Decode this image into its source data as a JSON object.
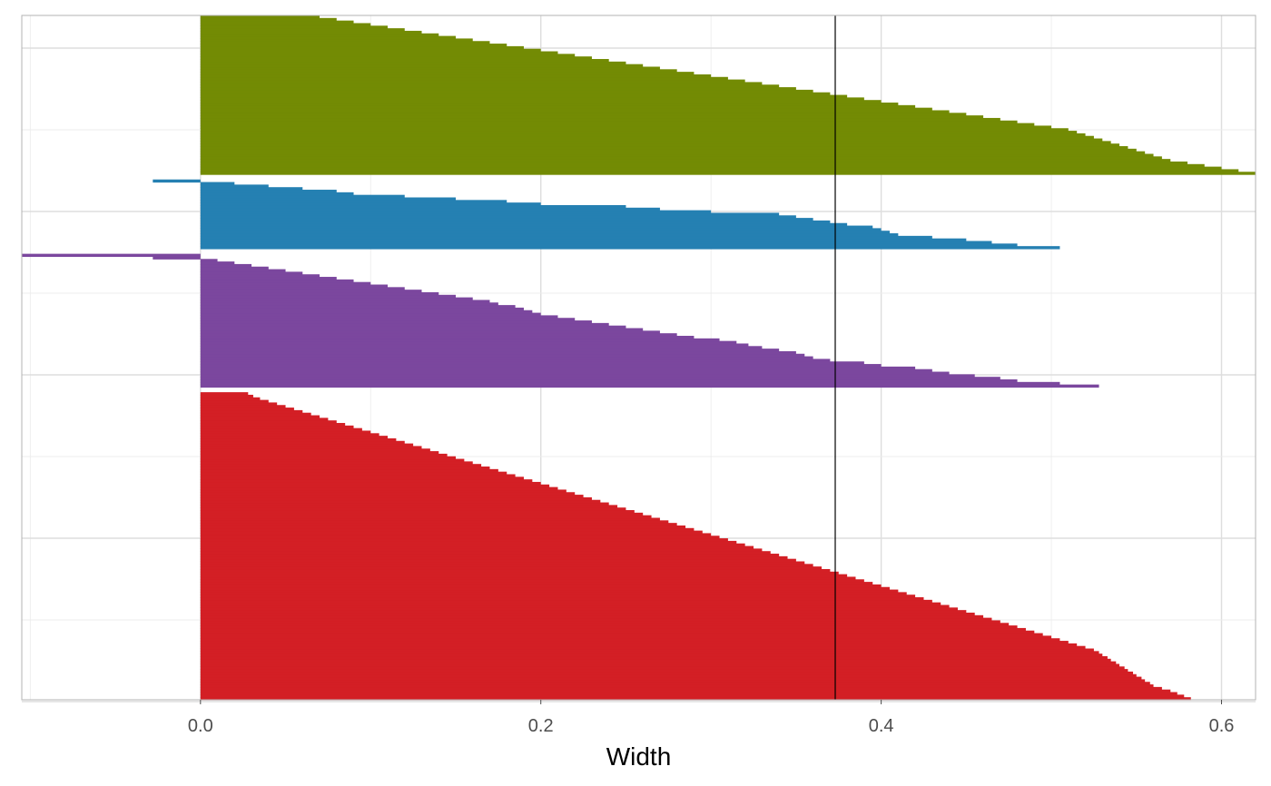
{
  "chart_data": {
    "type": "silhouette",
    "title": "",
    "xlabel": "Width",
    "ylabel": "",
    "xlim": [
      -0.105,
      0.62
    ],
    "x_ticks": [
      0.0,
      0.2,
      0.4,
      0.6
    ],
    "x_tick_labels": [
      "0.0",
      "0.2",
      "0.4",
      "0.6"
    ],
    "grid": true,
    "legend": "none",
    "reference_line": {
      "x": 0.373,
      "label": ""
    },
    "clusters": [
      {
        "color": "#d31f25",
        "values": [
          0.582,
          0.578,
          0.574,
          0.57,
          0.565,
          0.56,
          0.558,
          0.555,
          0.553,
          0.55,
          0.548,
          0.545,
          0.543,
          0.54,
          0.538,
          0.535,
          0.533,
          0.53,
          0.528,
          0.525,
          0.52,
          0.515,
          0.51,
          0.505,
          0.5,
          0.495,
          0.49,
          0.485,
          0.48,
          0.475,
          0.47,
          0.465,
          0.46,
          0.455,
          0.45,
          0.445,
          0.44,
          0.435,
          0.43,
          0.425,
          0.42,
          0.415,
          0.41,
          0.405,
          0.4,
          0.395,
          0.39,
          0.385,
          0.38,
          0.375,
          0.37,
          0.365,
          0.36,
          0.355,
          0.35,
          0.345,
          0.34,
          0.335,
          0.33,
          0.325,
          0.32,
          0.315,
          0.31,
          0.305,
          0.3,
          0.295,
          0.29,
          0.285,
          0.28,
          0.275,
          0.27,
          0.265,
          0.26,
          0.255,
          0.25,
          0.245,
          0.24,
          0.235,
          0.23,
          0.225,
          0.22,
          0.215,
          0.21,
          0.205,
          0.2,
          0.195,
          0.19,
          0.185,
          0.18,
          0.175,
          0.17,
          0.165,
          0.16,
          0.155,
          0.15,
          0.145,
          0.14,
          0.135,
          0.13,
          0.125,
          0.12,
          0.115,
          0.11,
          0.105,
          0.1,
          0.095,
          0.09,
          0.085,
          0.08,
          0.075,
          0.07,
          0.065,
          0.06,
          0.055,
          0.05,
          0.045,
          0.04,
          0.035,
          0.031,
          0.028
        ]
      },
      {
        "color": "#7b479e",
        "values": [
          0.528,
          0.505,
          0.48,
          0.47,
          0.455,
          0.44,
          0.43,
          0.42,
          0.4,
          0.39,
          0.37,
          0.36,
          0.355,
          0.35,
          0.34,
          0.33,
          0.322,
          0.315,
          0.305,
          0.29,
          0.28,
          0.27,
          0.26,
          0.25,
          0.24,
          0.23,
          0.22,
          0.21,
          0.2,
          0.195,
          0.19,
          0.185,
          0.175,
          0.17,
          0.16,
          0.15,
          0.14,
          0.13,
          0.12,
          0.11,
          0.1,
          0.09,
          0.08,
          0.07,
          0.06,
          0.05,
          0.04,
          0.03,
          0.02,
          0.01,
          -0.028,
          -0.105
        ]
      },
      {
        "color": "#2580b2",
        "values": [
          0.505,
          0.48,
          0.465,
          0.45,
          0.43,
          0.41,
          0.405,
          0.4,
          0.395,
          0.38,
          0.37,
          0.36,
          0.35,
          0.34,
          0.3,
          0.27,
          0.25,
          0.2,
          0.18,
          0.15,
          0.12,
          0.09,
          0.08,
          0.06,
          0.04,
          0.02,
          -0.028
        ]
      },
      {
        "color": "#738b04",
        "values": [
          0.62,
          0.61,
          0.6,
          0.59,
          0.58,
          0.57,
          0.565,
          0.56,
          0.555,
          0.55,
          0.545,
          0.54,
          0.535,
          0.53,
          0.525,
          0.52,
          0.515,
          0.51,
          0.5,
          0.49,
          0.48,
          0.47,
          0.46,
          0.45,
          0.44,
          0.43,
          0.42,
          0.41,
          0.4,
          0.39,
          0.38,
          0.37,
          0.36,
          0.35,
          0.34,
          0.33,
          0.32,
          0.31,
          0.3,
          0.29,
          0.28,
          0.27,
          0.26,
          0.25,
          0.24,
          0.23,
          0.22,
          0.21,
          0.2,
          0.19,
          0.18,
          0.17,
          0.16,
          0.15,
          0.14,
          0.13,
          0.12,
          0.11,
          0.1,
          0.09,
          0.08,
          0.07
        ]
      }
    ]
  }
}
